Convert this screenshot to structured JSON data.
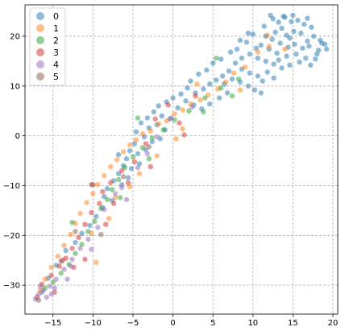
{
  "chart_data": {
    "type": "scatter",
    "title": "",
    "xlabel": "",
    "ylabel": "",
    "xlim": [
      -18.5,
      20.6
    ],
    "ylim": [
      -35.8,
      26.3
    ],
    "x_ticks": [
      -15,
      -10,
      -5,
      0,
      5,
      10,
      15,
      20
    ],
    "y_ticks": [
      -30,
      -20,
      -10,
      0,
      10,
      20
    ],
    "x_tick_labels": [
      "−15",
      "−10",
      "−5",
      "0",
      "5",
      "10",
      "15",
      "20"
    ],
    "y_tick_labels": [
      "−30",
      "−20",
      "−10",
      "0",
      "10",
      "20"
    ],
    "grid": true,
    "grid_style": "dashed",
    "legend": {
      "location": "upper-left",
      "entries": [
        "0",
        "1",
        "2",
        "3",
        "4",
        "5"
      ]
    },
    "series": [
      {
        "name": "0",
        "color": "#1f77b4",
        "points": [
          [
            12.5,
            23.5
          ],
          [
            13.2,
            22.8
          ],
          [
            14.0,
            23.8
          ],
          [
            14.8,
            22.9
          ],
          [
            15.6,
            23.2
          ],
          [
            16.4,
            22.4
          ],
          [
            17.3,
            21.8
          ],
          [
            13.6,
            21.6
          ],
          [
            12.8,
            20.8
          ],
          [
            14.2,
            20.2
          ],
          [
            15.1,
            21.0
          ],
          [
            16.0,
            20.6
          ],
          [
            17.6,
            20.0
          ],
          [
            18.4,
            19.2
          ],
          [
            19.0,
            18.4
          ],
          [
            18.2,
            17.2
          ],
          [
            17.0,
            18.0
          ],
          [
            16.2,
            17.6
          ],
          [
            15.2,
            18.4
          ],
          [
            14.4,
            17.8
          ],
          [
            13.4,
            18.6
          ],
          [
            12.4,
            19.4
          ],
          [
            11.6,
            20.0
          ],
          [
            11.0,
            18.2
          ],
          [
            12.0,
            17.4
          ],
          [
            13.0,
            16.6
          ],
          [
            14.2,
            16.0
          ],
          [
            15.4,
            16.4
          ],
          [
            16.6,
            15.6
          ],
          [
            17.8,
            15.4
          ],
          [
            10.4,
            17.6
          ],
          [
            9.6,
            16.4
          ],
          [
            10.6,
            15.6
          ],
          [
            11.6,
            15.0
          ],
          [
            12.6,
            14.4
          ],
          [
            13.6,
            13.6
          ],
          [
            14.6,
            14.2
          ],
          [
            8.6,
            15.6
          ],
          [
            7.8,
            14.6
          ],
          [
            8.6,
            13.4
          ],
          [
            9.6,
            12.6
          ],
          [
            10.6,
            12.0
          ],
          [
            11.8,
            12.8
          ],
          [
            12.6,
            11.6
          ],
          [
            7.0,
            13.0
          ],
          [
            6.2,
            12.0
          ],
          [
            5.4,
            11.2
          ],
          [
            6.4,
            10.4
          ],
          [
            7.4,
            11.4
          ],
          [
            8.4,
            10.8
          ],
          [
            9.4,
            10.0
          ],
          [
            10.2,
            9.2
          ],
          [
            11.0,
            8.6
          ],
          [
            4.6,
            10.4
          ],
          [
            3.8,
            9.4
          ],
          [
            2.8,
            8.6
          ],
          [
            1.8,
            9.6
          ],
          [
            1.0,
            8.4
          ],
          [
            0.0,
            7.6
          ],
          [
            -0.8,
            6.8
          ],
          [
            1.6,
            7.0
          ],
          [
            2.6,
            6.2
          ],
          [
            3.6,
            5.4
          ],
          [
            4.6,
            6.4
          ],
          [
            5.8,
            7.6
          ],
          [
            -1.8,
            6.0
          ],
          [
            -2.4,
            4.8
          ],
          [
            -1.4,
            4.0
          ],
          [
            -0.4,
            3.4
          ],
          [
            -3.2,
            3.6
          ],
          [
            -4.0,
            2.6
          ],
          [
            -3.0,
            1.6
          ],
          [
            -2.0,
            2.2
          ],
          [
            -4.6,
            0.8
          ],
          [
            -3.6,
            -0.2
          ],
          [
            -2.6,
            -1.2
          ],
          [
            -1.6,
            -0.6
          ],
          [
            -4.8,
            -1.6
          ],
          [
            -5.4,
            -3.0
          ],
          [
            -4.4,
            -3.6
          ],
          [
            -3.4,
            -2.8
          ],
          [
            -5.8,
            -4.6
          ],
          [
            -6.2,
            -6.0
          ],
          [
            -5.2,
            -6.6
          ],
          [
            -4.2,
            -5.6
          ],
          [
            -6.8,
            -7.6
          ],
          [
            -7.4,
            -9.0
          ],
          [
            -6.4,
            -9.8
          ],
          [
            -5.6,
            -8.4
          ],
          [
            -8.2,
            -10.6
          ],
          [
            -8.6,
            -12.2
          ],
          [
            -7.6,
            -13.0
          ],
          [
            -8.8,
            -14.4
          ],
          [
            -9.6,
            -16.2
          ],
          [
            -10.4,
            -18.0
          ],
          [
            -11.4,
            -19.6
          ],
          [
            -12.2,
            -21.4
          ],
          [
            -13.4,
            -23.0
          ],
          [
            -14.6,
            -26.0
          ],
          [
            -15.6,
            -28.6
          ],
          [
            -16.4,
            -31.4
          ],
          [
            8.0,
            17.4
          ],
          [
            9.2,
            18.8
          ],
          [
            10.0,
            20.4
          ],
          [
            13.8,
            24.0
          ],
          [
            15.0,
            24.2
          ],
          [
            16.8,
            23.6
          ],
          [
            18.6,
            18.6
          ],
          [
            11.2,
            11.0
          ],
          [
            6.8,
            8.6
          ],
          [
            0.6,
            5.6
          ],
          [
            -1.0,
            1.2
          ],
          [
            -6.8,
            -3.8
          ],
          [
            2.2,
            11.0
          ],
          [
            3.2,
            12.4
          ],
          [
            4.2,
            13.2
          ],
          [
            5.0,
            14.6
          ],
          [
            6.0,
            15.4
          ],
          [
            7.2,
            16.8
          ],
          [
            8.4,
            19.2
          ],
          [
            9.4,
            20.6
          ],
          [
            11.4,
            22.0
          ],
          [
            12.2,
            24.2
          ],
          [
            14.6,
            19.6
          ],
          [
            16.8,
            19.0
          ],
          [
            18.0,
            16.4
          ],
          [
            19.2,
            17.4
          ],
          [
            13.2,
            15.2
          ],
          [
            15.8,
            14.8
          ],
          [
            17.2,
            14.2
          ]
        ]
      },
      {
        "name": "1",
        "color": "#ff7f0e",
        "points": [
          [
            12.0,
            18.0
          ],
          [
            10.6,
            16.8
          ],
          [
            9.0,
            13.8
          ],
          [
            7.6,
            12.6
          ],
          [
            6.6,
            10.8
          ],
          [
            5.6,
            9.4
          ],
          [
            4.4,
            8.2
          ],
          [
            3.4,
            7.2
          ],
          [
            2.2,
            6.4
          ],
          [
            1.2,
            5.2
          ],
          [
            0.2,
            4.4
          ],
          [
            -0.8,
            3.0
          ],
          [
            -1.8,
            2.4
          ],
          [
            -2.8,
            1.0
          ],
          [
            -3.8,
            0.4
          ],
          [
            -4.6,
            -0.8
          ],
          [
            -5.4,
            -1.8
          ],
          [
            -6.2,
            -3.2
          ],
          [
            -7.0,
            -4.8
          ],
          [
            -7.8,
            -6.2
          ],
          [
            -8.6,
            -8.0
          ],
          [
            -9.4,
            -9.8
          ],
          [
            -10.0,
            -11.6
          ],
          [
            -10.8,
            -13.4
          ],
          [
            -11.6,
            -15.6
          ],
          [
            -12.2,
            -17.6
          ],
          [
            -12.8,
            -19.8
          ],
          [
            -13.6,
            -22.0
          ],
          [
            -14.4,
            -24.2
          ],
          [
            -15.2,
            -26.4
          ],
          [
            -16.0,
            -28.8
          ],
          [
            -16.6,
            -31.0
          ],
          [
            -5.4,
            -10.2
          ],
          [
            -7.2,
            -12.4
          ],
          [
            -9.6,
            -25.4
          ],
          [
            3.0,
            10.4
          ],
          [
            8.4,
            9.2
          ],
          [
            1.2,
            1.4
          ],
          [
            -2.0,
            -4.0
          ],
          [
            11.8,
            20.2
          ],
          [
            14.0,
            17.4
          ],
          [
            0.4,
            -0.6
          ],
          [
            -4.2,
            -7.6
          ],
          [
            -8.0,
            -16.6
          ],
          [
            -10.2,
            -19.6
          ]
        ]
      },
      {
        "name": "2",
        "color": "#2ca02c",
        "points": [
          [
            5.4,
            15.6
          ],
          [
            8.2,
            11.4
          ],
          [
            6.0,
            9.6
          ],
          [
            4.0,
            7.6
          ],
          [
            2.0,
            5.0
          ],
          [
            0.2,
            3.2
          ],
          [
            -1.2,
            1.2
          ],
          [
            -2.6,
            -0.4
          ],
          [
            -3.8,
            -2.4
          ],
          [
            -5.0,
            -4.2
          ],
          [
            -6.0,
            -6.4
          ],
          [
            -6.8,
            -8.8
          ],
          [
            -7.6,
            -10.8
          ],
          [
            -8.2,
            -12.8
          ],
          [
            -9.0,
            -14.6
          ],
          [
            -9.8,
            -17.2
          ],
          [
            -10.6,
            -19.2
          ],
          [
            -11.4,
            -21.8
          ],
          [
            -12.2,
            -23.6
          ],
          [
            -13.0,
            -25.8
          ],
          [
            -14.0,
            -27.6
          ],
          [
            -15.0,
            -29.4
          ],
          [
            -16.0,
            -30.6
          ],
          [
            -12.6,
            -17.4
          ],
          [
            -6.6,
            -12.4
          ],
          [
            -3.0,
            -4.6
          ],
          [
            3.8,
            4.8
          ],
          [
            7.4,
            8.0
          ],
          [
            -4.4,
            3.6
          ]
        ]
      },
      {
        "name": "3",
        "color": "#d62728",
        "points": [
          [
            1.4,
            0.2
          ],
          [
            2.8,
            8.0
          ],
          [
            -0.6,
            6.2
          ],
          [
            -2.2,
            3.4
          ],
          [
            -3.4,
            -1.6
          ],
          [
            -4.8,
            -5.2
          ],
          [
            -6.4,
            -7.0
          ],
          [
            -7.8,
            -9.4
          ],
          [
            -8.8,
            -11.2
          ],
          [
            -10.0,
            -9.8
          ],
          [
            -9.2,
            -13.6
          ],
          [
            -10.2,
            -15.4
          ],
          [
            -11.0,
            -17.8
          ],
          [
            -11.8,
            -20.4
          ],
          [
            -12.6,
            -22.6
          ],
          [
            -13.4,
            -24.6
          ],
          [
            -14.2,
            -26.2
          ],
          [
            -15.2,
            -28.0
          ],
          [
            -16.4,
            -29.8
          ],
          [
            -17.0,
            -32.4
          ],
          [
            -11.0,
            -24.8
          ],
          [
            -13.8,
            -25.0
          ],
          [
            -7.4,
            -13.6
          ],
          [
            -5.6,
            -9.4
          ],
          [
            -2.8,
            -6.2
          ],
          [
            0.8,
            2.6
          ],
          [
            -8.4,
            -17.8
          ],
          [
            -12.4,
            -26.4
          ],
          [
            -14.8,
            -31.4
          ]
        ]
      },
      {
        "name": "4",
        "color": "#9467bd",
        "points": [
          [
            2.4,
            5.8
          ],
          [
            -0.2,
            3.6
          ],
          [
            -2.0,
            -0.2
          ],
          [
            -3.2,
            -3.6
          ],
          [
            -4.4,
            -6.4
          ],
          [
            -6.4,
            -10.4
          ],
          [
            -7.2,
            -11.6
          ],
          [
            -8.6,
            -14.8
          ],
          [
            -9.4,
            -18.4
          ],
          [
            -10.6,
            -20.8
          ],
          [
            -11.6,
            -22.6
          ],
          [
            -12.6,
            -24.8
          ],
          [
            -13.6,
            -26.8
          ],
          [
            -14.6,
            -28.8
          ],
          [
            -15.4,
            -30.2
          ],
          [
            -16.2,
            -31.0
          ],
          [
            -16.8,
            -31.8
          ],
          [
            -17.2,
            -32.8
          ],
          [
            -15.8,
            -32.4
          ],
          [
            -14.8,
            -30.6
          ],
          [
            -16.6,
            -30.2
          ],
          [
            -15.2,
            -31.8
          ],
          [
            -13.2,
            -28.8
          ],
          [
            -12.8,
            -26.2
          ],
          [
            -10.2,
            -22.8
          ],
          [
            -5.8,
            -12.8
          ]
        ]
      },
      {
        "name": "5",
        "color": "#8c564b",
        "points": [
          [
            -10.2,
            -9.8
          ],
          [
            -9.0,
            -19.8
          ],
          [
            -12.2,
            -19.2
          ],
          [
            -14.0,
            -25.2
          ],
          [
            -6.2,
            -8.2
          ],
          [
            -16.8,
            -33.0
          ],
          [
            -3.0,
            -2.2
          ]
        ]
      }
    ]
  }
}
